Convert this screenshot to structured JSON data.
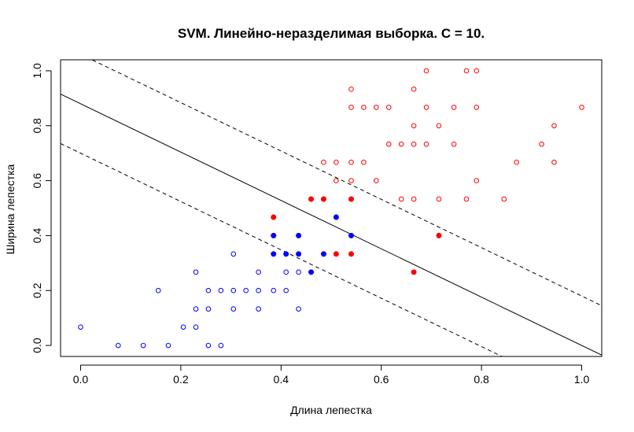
{
  "chart_data": {
    "type": "scatter",
    "title": "SVM. Линейно-неразделимая выборка. С = 10.",
    "xlabel": "Длина лепестка",
    "ylabel": "Ширина лепестка",
    "xlim": [
      -0.04,
      1.04
    ],
    "ylim": [
      -0.04,
      1.04
    ],
    "xticks": [
      0.0,
      0.2,
      0.4,
      0.6,
      0.8,
      1.0
    ],
    "xtick_labels": [
      "0.0",
      "0.2",
      "0.4",
      "0.6",
      "0.8",
      "1.0"
    ],
    "yticks": [
      0.0,
      0.2,
      0.4,
      0.6,
      0.8,
      1.0
    ],
    "ytick_labels": [
      "0.0",
      "0.2",
      "0.4",
      "0.6",
      "0.8",
      "1.0"
    ],
    "grid": false,
    "colors": {
      "class_a": "#0000ff",
      "class_b": "#ff0000",
      "lines": "#000000"
    },
    "series": [
      {
        "color": "#0000ff",
        "marker": "open-circle",
        "points": [
          [
            0.0,
            0.067
          ],
          [
            0.075,
            0.0
          ],
          [
            0.125,
            0.0
          ],
          [
            0.155,
            0.2
          ],
          [
            0.175,
            0.0
          ],
          [
            0.205,
            0.067
          ],
          [
            0.23,
            0.067
          ],
          [
            0.23,
            0.133
          ],
          [
            0.23,
            0.267
          ],
          [
            0.255,
            0.133
          ],
          [
            0.255,
            0.2
          ],
          [
            0.255,
            0.0
          ],
          [
            0.28,
            0.2
          ],
          [
            0.28,
            0.0
          ],
          [
            0.305,
            0.333
          ],
          [
            0.305,
            0.2
          ],
          [
            0.305,
            0.133
          ],
          [
            0.33,
            0.2
          ],
          [
            0.355,
            0.2
          ],
          [
            0.355,
            0.267
          ],
          [
            0.355,
            0.133
          ],
          [
            0.385,
            0.2
          ],
          [
            0.41,
            0.267
          ],
          [
            0.41,
            0.2
          ],
          [
            0.435,
            0.267
          ],
          [
            0.435,
            0.133
          ]
        ]
      },
      {
        "color": "#0000ff",
        "marker": "filled-circle",
        "points": [
          [
            0.385,
            0.4
          ],
          [
            0.385,
            0.333
          ],
          [
            0.41,
            0.333
          ],
          [
            0.435,
            0.4
          ],
          [
            0.435,
            0.333
          ],
          [
            0.46,
            0.267
          ],
          [
            0.485,
            0.333
          ],
          [
            0.51,
            0.467
          ],
          [
            0.54,
            0.4
          ]
        ]
      },
      {
        "color": "#ff0000",
        "marker": "open-circle",
        "points": [
          [
            0.54,
            0.933
          ],
          [
            0.54,
            0.867
          ],
          [
            0.565,
            0.867
          ],
          [
            0.59,
            0.867
          ],
          [
            0.615,
            0.867
          ],
          [
            0.665,
            0.933
          ],
          [
            0.69,
            1.0
          ],
          [
            0.69,
            0.867
          ],
          [
            0.745,
            0.867
          ],
          [
            0.77,
            1.0
          ],
          [
            0.79,
            1.0
          ],
          [
            0.79,
            0.867
          ],
          [
            1.0,
            0.867
          ],
          [
            0.665,
            0.8
          ],
          [
            0.715,
            0.8
          ],
          [
            0.945,
            0.8
          ],
          [
            0.615,
            0.733
          ],
          [
            0.64,
            0.733
          ],
          [
            0.665,
            0.733
          ],
          [
            0.69,
            0.733
          ],
          [
            0.745,
            0.733
          ],
          [
            0.92,
            0.733
          ],
          [
            0.485,
            0.667
          ],
          [
            0.51,
            0.667
          ],
          [
            0.54,
            0.667
          ],
          [
            0.565,
            0.667
          ],
          [
            0.87,
            0.667
          ],
          [
            0.945,
            0.667
          ],
          [
            0.51,
            0.6
          ],
          [
            0.54,
            0.6
          ],
          [
            0.59,
            0.6
          ],
          [
            0.79,
            0.6
          ],
          [
            0.64,
            0.533
          ],
          [
            0.665,
            0.533
          ],
          [
            0.715,
            0.533
          ],
          [
            0.77,
            0.533
          ],
          [
            0.845,
            0.533
          ]
        ]
      },
      {
        "color": "#ff0000",
        "marker": "filled-circle",
        "points": [
          [
            0.385,
            0.467
          ],
          [
            0.46,
            0.533
          ],
          [
            0.485,
            0.533
          ],
          [
            0.54,
            0.533
          ],
          [
            0.51,
            0.333
          ],
          [
            0.54,
            0.333
          ],
          [
            0.665,
            0.267
          ],
          [
            0.715,
            0.4
          ]
        ]
      }
    ],
    "lines": [
      {
        "style": "solid",
        "intercept": 0.88,
        "slope": -0.88
      },
      {
        "style": "dashed",
        "intercept": 1.06,
        "slope": -0.88
      },
      {
        "style": "dashed",
        "intercept": 0.7,
        "slope": -0.88
      }
    ]
  }
}
